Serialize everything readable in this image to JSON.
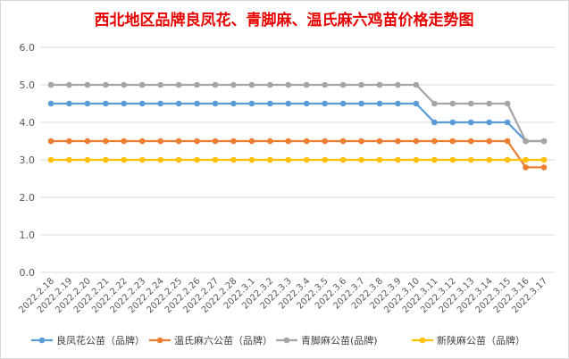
{
  "chart_data": {
    "type": "line",
    "title": "西北地区品牌良凤花、青脚麻、温氏麻六鸡苗价格走势图",
    "xlabel": "",
    "ylabel": "",
    "ylim": [
      0,
      6
    ],
    "yticks": [
      "0.0",
      "1.0",
      "2.0",
      "3.0",
      "4.0",
      "5.0",
      "6.0"
    ],
    "grid": true,
    "legend_position": "bottom",
    "categories": [
      "2022.2.18",
      "2022.2.19",
      "2022.2.20",
      "2022.2.21",
      "2022.2.22",
      "2022.2.23",
      "2022.2.24",
      "2022.2.25",
      "2022.2.26",
      "2022.2.27",
      "2022.2.28",
      "2022.3.1",
      "2022.3.2",
      "2022.3.3",
      "2022.3.4",
      "2022.3.5",
      "2022.3.6",
      "2022.3.7",
      "2022.3.8",
      "2022.3.9",
      "2022.3.10",
      "2022.3.11",
      "2022.3.12",
      "2022.3.13",
      "2022.3.14",
      "2022.3.15",
      "2022.3.16",
      "2022.3.17"
    ],
    "series": [
      {
        "name": "良凤花公苗（品牌）",
        "color": "#5b9bd5",
        "values": [
          4.5,
          4.5,
          4.5,
          4.5,
          4.5,
          4.5,
          4.5,
          4.5,
          4.5,
          4.5,
          4.5,
          4.5,
          4.5,
          4.5,
          4.5,
          4.5,
          4.5,
          4.5,
          4.5,
          4.5,
          4.5,
          4.0,
          4.0,
          4.0,
          4.0,
          4.0,
          3.5,
          3.5
        ]
      },
      {
        "name": "温氏麻六公苗（品牌）",
        "color": "#ed7d31",
        "values": [
          3.5,
          3.5,
          3.5,
          3.5,
          3.5,
          3.5,
          3.5,
          3.5,
          3.5,
          3.5,
          3.5,
          3.5,
          3.5,
          3.5,
          3.5,
          3.5,
          3.5,
          3.5,
          3.5,
          3.5,
          3.5,
          3.5,
          3.5,
          3.5,
          3.5,
          3.5,
          2.8,
          2.8
        ]
      },
      {
        "name": "青脚麻公苗(品牌)",
        "color": "#a5a5a5",
        "values": [
          5.0,
          5.0,
          5.0,
          5.0,
          5.0,
          5.0,
          5.0,
          5.0,
          5.0,
          5.0,
          5.0,
          5.0,
          5.0,
          5.0,
          5.0,
          5.0,
          5.0,
          5.0,
          5.0,
          5.0,
          5.0,
          4.5,
          4.5,
          4.5,
          4.5,
          4.5,
          3.5,
          3.5
        ]
      },
      {
        "name": "新陕麻公苗（品牌）",
        "color": "#ffc000",
        "values": [
          3.0,
          3.0,
          3.0,
          3.0,
          3.0,
          3.0,
          3.0,
          3.0,
          3.0,
          3.0,
          3.0,
          3.0,
          3.0,
          3.0,
          3.0,
          3.0,
          3.0,
          3.0,
          3.0,
          3.0,
          3.0,
          3.0,
          3.0,
          3.0,
          3.0,
          3.0,
          3.0,
          3.0
        ]
      }
    ]
  }
}
